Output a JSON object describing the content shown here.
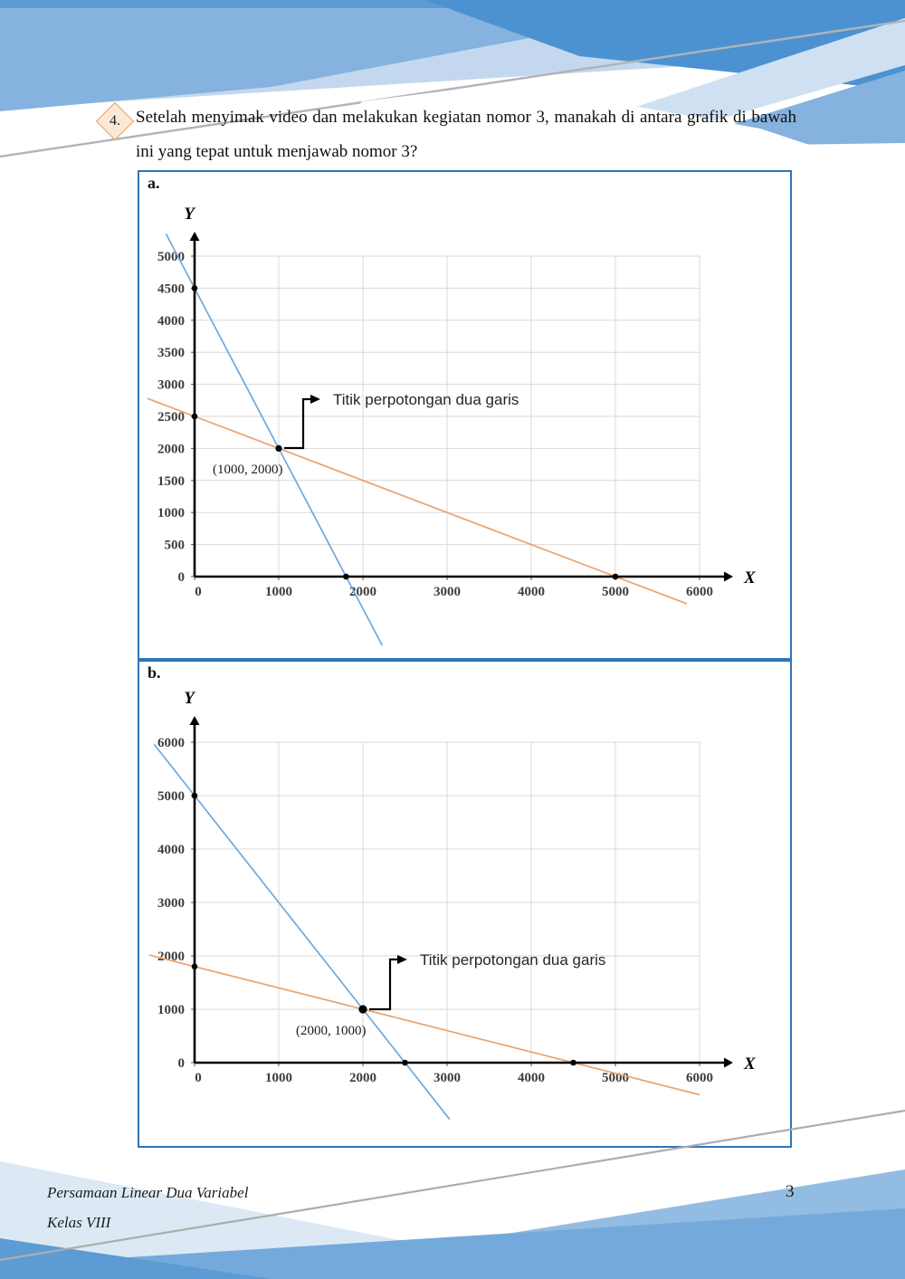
{
  "page": {
    "number": "3"
  },
  "question": {
    "marker": "4.",
    "text": "Setelah menyimak video dan melakukan kegiatan nomor 3, manakah di antara grafik di bawah ini yang tepat untuk menjawab nomor 3?"
  },
  "footer": {
    "line1": "Persamaan Linear Dua Variabel",
    "line2": "Kelas VIII"
  },
  "colors": {
    "box_border": "#2E75B6",
    "grid": "#D9D9D9",
    "axis": "#000000",
    "blue_line": "#6FA8DC",
    "orange_line": "#E8A372"
  },
  "chart_data": [
    {
      "id": "a",
      "label": "a.",
      "type": "line",
      "xlabel": "X",
      "ylabel": "Y",
      "xticks": [
        0,
        1000,
        2000,
        3000,
        4000,
        5000,
        6000
      ],
      "yticks": [
        0,
        500,
        1000,
        1500,
        2000,
        2500,
        3000,
        3500,
        4000,
        4500,
        5000
      ],
      "xlim": [
        0,
        6000
      ],
      "ylim": [
        0,
        5000
      ],
      "grid": true,
      "series": [
        {
          "name": "garis biru",
          "color": "#6FA8DC",
          "points": [
            [
              0,
              4500
            ],
            [
              1800,
              0
            ]
          ],
          "draw_range": [
            -340,
            2230
          ]
        },
        {
          "name": "garis oranye",
          "color": "#E8A372",
          "points": [
            [
              0,
              2500
            ],
            [
              5000,
              0
            ]
          ],
          "draw_range": [
            -560,
            5850
          ]
        }
      ],
      "marked_points": [
        [
          0,
          4500
        ],
        [
          0,
          2500
        ],
        [
          1000,
          2000
        ],
        [
          1800,
          0
        ],
        [
          5000,
          0
        ]
      ],
      "intersection": {
        "x": 1000,
        "y": 2000,
        "label": "(1000, 2000)"
      },
      "annotation": "Titik perpotongan dua garis"
    },
    {
      "id": "b",
      "label": "b.",
      "type": "line",
      "xlabel": "X",
      "ylabel": "Y",
      "xticks": [
        0,
        1000,
        2000,
        3000,
        4000,
        5000,
        6000
      ],
      "yticks": [
        0,
        1000,
        2000,
        3000,
        4000,
        5000,
        6000
      ],
      "xlim": [
        0,
        6000
      ],
      "ylim": [
        0,
        6000
      ],
      "grid": true,
      "series": [
        {
          "name": "garis biru",
          "color": "#6FA8DC",
          "points": [
            [
              0,
              5000
            ],
            [
              2500,
              0
            ]
          ],
          "draw_range": [
            -480,
            3030
          ]
        },
        {
          "name": "garis oranye",
          "color": "#E8A372",
          "points": [
            [
              0,
              1800
            ],
            [
              4500,
              0
            ]
          ],
          "draw_range": [
            -540,
            6000
          ]
        }
      ],
      "marked_points": [
        [
          0,
          5000
        ],
        [
          0,
          1800
        ],
        [
          2000,
          1000
        ],
        [
          2500,
          0
        ],
        [
          4500,
          0
        ]
      ],
      "intersection": {
        "x": 2000,
        "y": 1000,
        "label": "(2000, 1000)"
      },
      "annotation": "Titik perpotongan dua garis"
    }
  ]
}
